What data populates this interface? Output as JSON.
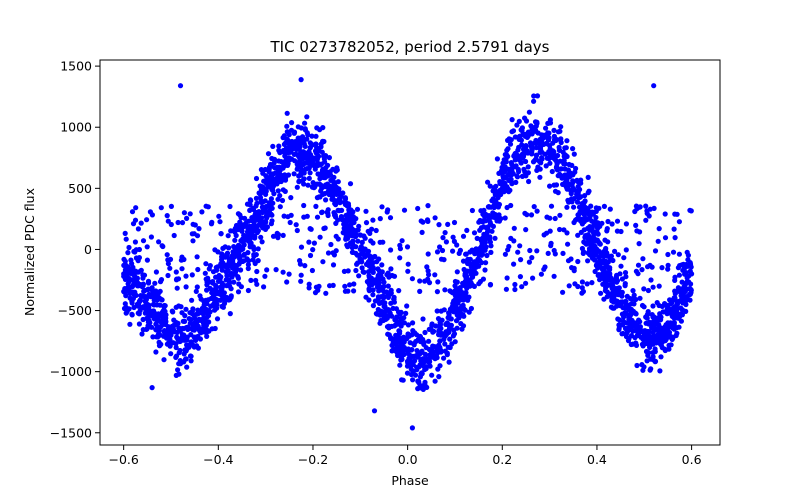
{
  "chart_data": {
    "type": "scatter",
    "title": "TIC 0273782052, period 2.5791 days",
    "xlabel": "Phase",
    "ylabel": "Normalized PDC flux",
    "xlim": [
      -0.65,
      0.66
    ],
    "ylim": [
      -1600,
      1550
    ],
    "xticks": [
      -0.6,
      -0.4,
      -0.2,
      0.0,
      0.2,
      0.4,
      0.6
    ],
    "xtick_labels": [
      "−0.6",
      "−0.4",
      "−0.2",
      "0.0",
      "0.2",
      "0.4",
      "0.6"
    ],
    "yticks": [
      -1500,
      -1000,
      -500,
      0,
      500,
      1000,
      1500
    ],
    "ytick_labels": [
      "−1500",
      "−1000",
      "−500",
      "0",
      "500",
      "1000",
      "1500"
    ],
    "grid": false,
    "marker_color": "#0000ff",
    "series": [
      {
        "phase_range": [
          -0.6,
          0.6
        ],
        "model": "phase-folded light curve, two maxima near phase -0.22 and 0.28, two minima near phase -0.48 and 0.03",
        "points": [
          {
            "x": -0.6,
            "y": -200
          },
          {
            "x": -0.58,
            "y": -350
          },
          {
            "x": -0.55,
            "y": -450
          },
          {
            "x": -0.52,
            "y": -600
          },
          {
            "x": -0.5,
            "y": -700
          },
          {
            "x": -0.48,
            "y": -750
          },
          {
            "x": -0.45,
            "y": -650
          },
          {
            "x": -0.42,
            "y": -500
          },
          {
            "x": -0.4,
            "y": -350
          },
          {
            "x": -0.37,
            "y": -150
          },
          {
            "x": -0.35,
            "y": 0
          },
          {
            "x": -0.32,
            "y": 250
          },
          {
            "x": -0.3,
            "y": 450
          },
          {
            "x": -0.27,
            "y": 650
          },
          {
            "x": -0.25,
            "y": 750
          },
          {
            "x": -0.22,
            "y": 800
          },
          {
            "x": -0.2,
            "y": 750
          },
          {
            "x": -0.17,
            "y": 600
          },
          {
            "x": -0.15,
            "y": 450
          },
          {
            "x": -0.12,
            "y": 200
          },
          {
            "x": -0.1,
            "y": 0
          },
          {
            "x": -0.07,
            "y": -250
          },
          {
            "x": -0.05,
            "y": -450
          },
          {
            "x": -0.02,
            "y": -700
          },
          {
            "x": 0.0,
            "y": -850
          },
          {
            "x": 0.03,
            "y": -900
          },
          {
            "x": 0.05,
            "y": -850
          },
          {
            "x": 0.08,
            "y": -700
          },
          {
            "x": 0.1,
            "y": -500
          },
          {
            "x": 0.13,
            "y": -250
          },
          {
            "x": 0.15,
            "y": 0
          },
          {
            "x": 0.18,
            "y": 300
          },
          {
            "x": 0.2,
            "y": 550
          },
          {
            "x": 0.23,
            "y": 750
          },
          {
            "x": 0.25,
            "y": 850
          },
          {
            "x": 0.28,
            "y": 900
          },
          {
            "x": 0.3,
            "y": 850
          },
          {
            "x": 0.33,
            "y": 700
          },
          {
            "x": 0.35,
            "y": 500
          },
          {
            "x": 0.38,
            "y": 250
          },
          {
            "x": 0.4,
            "y": 0
          },
          {
            "x": 0.43,
            "y": -250
          },
          {
            "x": 0.45,
            "y": -450
          },
          {
            "x": 0.48,
            "y": -600
          },
          {
            "x": 0.5,
            "y": -700
          },
          {
            "x": 0.52,
            "y": -700
          },
          {
            "x": 0.55,
            "y": -600
          },
          {
            "x": 0.58,
            "y": -400
          },
          {
            "x": 0.6,
            "y": -200
          }
        ],
        "outliers": [
          {
            "x": -0.48,
            "y": 1340
          },
          {
            "x": -0.225,
            "y": 1390
          },
          {
            "x": 0.52,
            "y": 1340
          },
          {
            "x": 0.01,
            "y": -1460
          },
          {
            "x": -0.07,
            "y": -1320
          },
          {
            "x": -0.54,
            "y": -1130
          }
        ]
      }
    ]
  }
}
